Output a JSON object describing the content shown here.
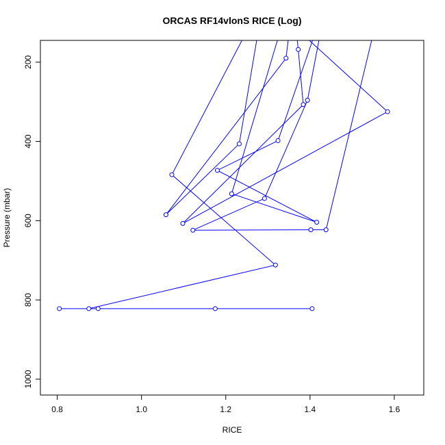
{
  "chart_data": {
    "type": "line",
    "title": "ORCAS RF14vlonS RICE (Log)",
    "xlabel": "RICE",
    "ylabel": "Pressure (mbar)",
    "xlim": [
      0.76,
      1.67
    ],
    "ylim": [
      1040,
      145
    ],
    "y_reversed": true,
    "x_ticks": [
      0.8,
      1.0,
      1.2,
      1.4,
      1.6
    ],
    "x_tick_labels": [
      "0.8",
      "1.0",
      "1.2",
      "1.4",
      "1.6"
    ],
    "y_ticks": [
      200,
      400,
      600,
      800,
      1000
    ],
    "y_tick_labels": [
      "200",
      "400",
      "600",
      "800",
      "1000"
    ],
    "grid": false,
    "series": [
      {
        "color": "#0000ff",
        "marker": "open-circle",
        "points": [
          [
            1.405,
            822
          ],
          [
            1.175,
            822
          ],
          [
            0.897,
            822
          ],
          [
            0.805,
            822
          ],
          [
            0.875,
            822
          ],
          [
            1.318,
            712
          ],
          [
            1.072,
            484
          ],
          [
            1.29,
            40
          ],
          [
            1.584,
            325
          ],
          [
            1.098,
            607
          ],
          [
            1.384,
            307
          ],
          [
            1.372,
            168
          ],
          [
            1.36,
            40
          ],
          [
            1.343,
            190
          ],
          [
            1.058,
            585
          ],
          [
            1.232,
            406
          ],
          [
            1.29,
            40
          ],
          [
            1.57,
            40
          ],
          [
            1.438,
            623
          ],
          [
            1.402,
            623
          ],
          [
            1.122,
            624
          ],
          [
            1.292,
            544
          ],
          [
            1.394,
            296
          ],
          [
            1.44,
            40
          ],
          [
            1.324,
            398
          ],
          [
            1.18,
            473
          ],
          [
            1.416,
            604
          ],
          [
            1.214,
            532
          ],
          [
            1.352,
            40
          ]
        ]
      }
    ]
  }
}
